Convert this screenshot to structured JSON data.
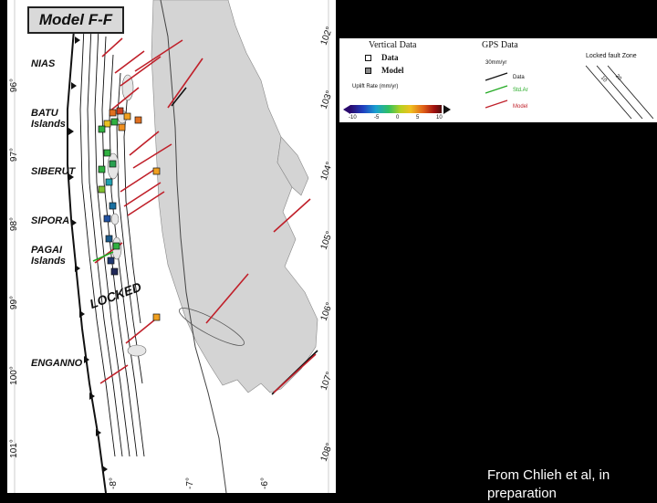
{
  "map": {
    "title": "Model F-F",
    "regions": [
      "NIAS",
      "BATU\nIslands",
      "SIBERUT",
      "SIPORA",
      "PAGAI\nIslands",
      "ENGANNO"
    ],
    "locked_label": "LOCKED",
    "lat_labels": [
      "96°",
      "97°",
      "98°",
      "99°",
      "100°",
      "101°"
    ],
    "lon_labels": [
      "102°",
      "103°",
      "104°",
      "105°",
      "106°",
      "107°",
      "108°"
    ],
    "bottom_labels": [
      "-8°",
      "-7°",
      "-6°"
    ],
    "colors": {
      "land": "#d4d4d4",
      "ocean": "#ffffff",
      "model_arrow": "#c0202a",
      "obs_arrow": "#111111",
      "contour": "#111111"
    }
  },
  "legend": {
    "vertical_title": "Vertical Data",
    "vertical_items": [
      "Data",
      "Model"
    ],
    "colorbar_label": "Uplift Rate (mm/yr)",
    "colorbar_ticks": [
      "-10",
      "-5",
      "0",
      "5",
      "10"
    ],
    "gps_title": "GPS Data",
    "gps_scale": "30mm/yr",
    "gps_items": [
      "Data",
      "Std.Ar",
      "Model"
    ],
    "locked_title": "Locked fault Zone",
    "locked_ticks": [
      "10",
      "20"
    ],
    "colors": {
      "data_arrow": "#111111",
      "std_arrow": "#22aa22",
      "model_arrow": "#c0202a"
    }
  },
  "credit": "From Chlieh et al, in preparation"
}
